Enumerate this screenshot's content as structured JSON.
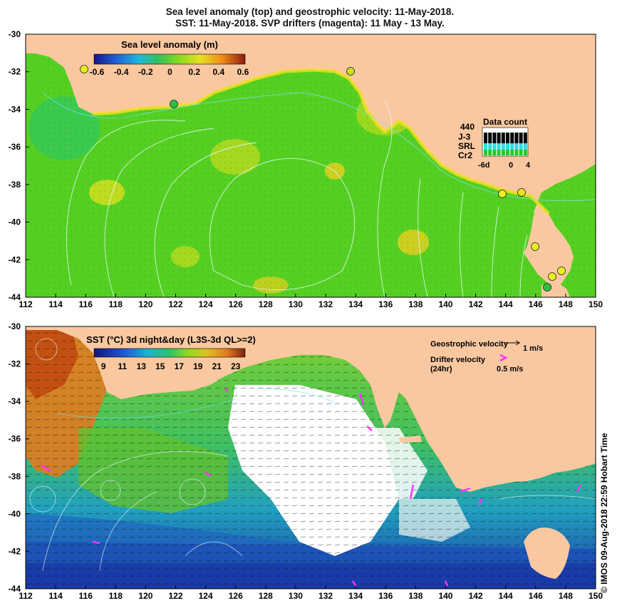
{
  "title_line1": "Sea level anomaly (top) and geostrophic velocity: 11-May-2018.",
  "title_line2": "SST: 11-May-2018. SVP drifters (magenta): 11 May - 13 May.",
  "top_panel": {
    "colorbar_title": "Sea level anomaly (m)",
    "colorbar_ticks": [
      "-0.6",
      "-0.4",
      "-0.2",
      "0",
      "0.2",
      "0.4",
      "0.6"
    ],
    "data_count": {
      "title": "Data count",
      "max_label": "440",
      "satellites": [
        "J-3",
        "SRL",
        "Cr2"
      ],
      "satellite_colors": [
        "#000000",
        "#33dddd",
        "#22cc22"
      ],
      "x_ticks": [
        "-6d",
        "0",
        "4"
      ]
    }
  },
  "bottom_panel": {
    "colorbar_title": "SST (°C) 3d night&day (L3S-3d QL>=2)",
    "colorbar_ticks": [
      "9",
      "11",
      "13",
      "15",
      "17",
      "19",
      "21",
      "23"
    ],
    "legend": {
      "geo_title": "Geostrophic velocity",
      "geo_scale": "1 m/s",
      "drifter_title": "Drifter velocity",
      "drifter_sub": "(24hr)",
      "drifter_scale": "0.5 m/s",
      "drifter_color": "#ff33ff"
    }
  },
  "axes": {
    "lon_ticks": [
      "112",
      "114",
      "116",
      "118",
      "120",
      "122",
      "124",
      "126",
      "128",
      "130",
      "132",
      "134",
      "136",
      "138",
      "140",
      "142",
      "144",
      "146",
      "148",
      "150"
    ],
    "lat_ticks": [
      "-30",
      "-32",
      "-34",
      "-36",
      "-38",
      "-40",
      "-42",
      "-44"
    ]
  },
  "colors": {
    "land": "#fac8a0",
    "ocean_mid": "#55d022",
    "ocean_hi": "#c8e020",
    "sst_warm": "#e07a20",
    "sst_cold": "#1a3aa8",
    "cloud": "#ffffff"
  },
  "credit": "© IMOS 09-Aug-2018 22:59 Hobart Time"
}
